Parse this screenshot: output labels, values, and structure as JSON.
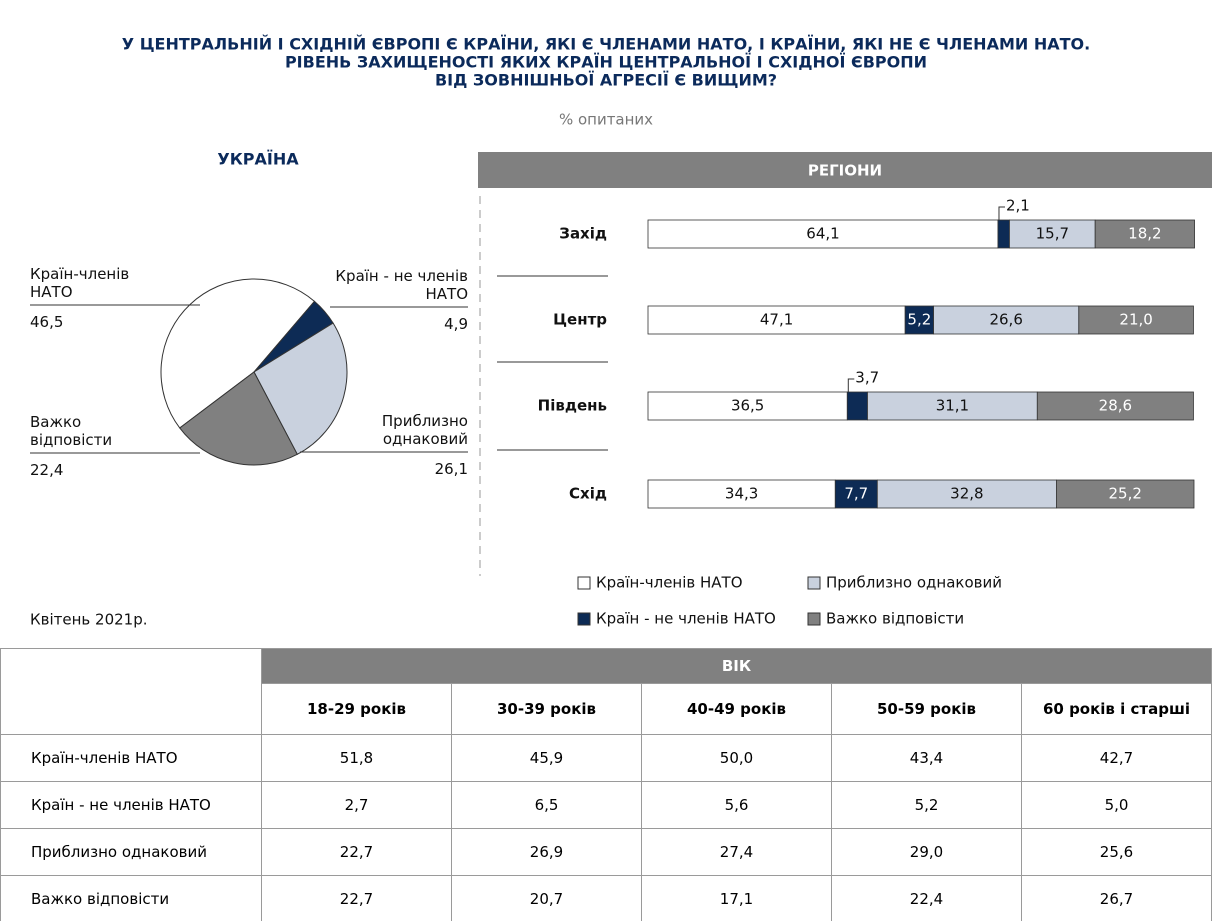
{
  "title": [
    "У ЦЕНТРАЛЬНІЙ І СХІДНІЙ ЄВРОПІ Є КРАЇНИ, ЯКІ Є ЧЛЕНАМИ НАТО, І КРАЇНИ, ЯКІ НЕ Є ЧЛЕНАМИ НАТО.",
    "РІВЕНЬ ЗАХИЩЕНОСТІ ЯКИХ КРАЇН ЦЕНТРАЛЬНОЇ І СХІДНОЇ ЄВРОПИ",
    "ВІД ЗОВНІШНЬОЇ АГРЕСІЇ Є ВИЩИМ?"
  ],
  "subtitle": "% опитаних",
  "date": "Квітень 2021р.",
  "chart_data": [
    {
      "type": "pie",
      "title": "УКРАЇНА",
      "categories": [
        "Країн-членів НАТО",
        "Країн - не членів НАТО",
        "Приблизно однаковий",
        "Важко відповісти"
      ],
      "values": [
        46.5,
        4.9,
        26.1,
        22.4
      ],
      "value_labels": [
        "46,5",
        "4,9",
        "26,1",
        "22,4"
      ],
      "colors": [
        "#ffffff",
        "#0d2b55",
        "#c9d1de",
        "#808080"
      ]
    },
    {
      "type": "bar",
      "orientation": "horizontal",
      "stacked": true,
      "title": "РЕГІОНИ",
      "categories": [
        "Захід",
        "Центр",
        "Південь",
        "Схід"
      ],
      "xlim": [
        0,
        100
      ],
      "series": [
        {
          "name": "Країн-членів НАТО",
          "color": "#ffffff",
          "values": [
            64.1,
            47.1,
            36.5,
            34.3
          ],
          "value_labels": [
            "64,1",
            "47,1",
            "36,5",
            "34,3"
          ]
        },
        {
          "name": "Країн - не членів НАТО",
          "color": "#0d2b55",
          "values": [
            2.1,
            5.2,
            3.7,
            7.7
          ],
          "value_labels": [
            "2,1",
            "5,2",
            "3,7",
            "7,7"
          ]
        },
        {
          "name": "Приблизно однаковий",
          "color": "#c9d1de",
          "values": [
            15.7,
            26.6,
            31.1,
            32.8
          ],
          "value_labels": [
            "15,7",
            "26,6",
            "31,1",
            "32,8"
          ]
        },
        {
          "name": "Важко відповісти",
          "color": "#808080",
          "values": [
            18.2,
            21.0,
            28.6,
            25.2
          ],
          "value_labels": [
            "18,2",
            "21,0",
            "28,6",
            "25,2"
          ]
        }
      ]
    }
  ],
  "table": {
    "group_header": "ВІК",
    "columns": [
      "18-29 років",
      "30-39 років",
      "40-49 років",
      "50-59 років",
      "60 років і старші"
    ],
    "rows": [
      [
        "Країн-членів НАТО",
        "51,8",
        "45,9",
        "50,0",
        "43,4",
        "42,7"
      ],
      [
        "Країн - не членів НАТО",
        "2,7",
        "6,5",
        "5,6",
        "5,2",
        "5,0"
      ],
      [
        "Приблизно однаковий",
        "22,7",
        "26,9",
        "27,4",
        "29,0",
        "25,6"
      ],
      [
        "Важко відповісти",
        "22,7",
        "20,7",
        "17,1",
        "22,4",
        "26,7"
      ]
    ]
  }
}
